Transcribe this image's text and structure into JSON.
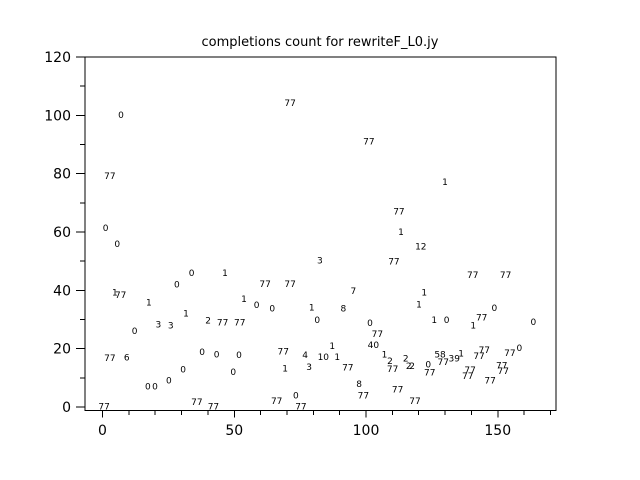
{
  "colors": {
    "background": "#ffffff",
    "foreground": "#000000"
  },
  "chart_data": {
    "type": "scatter",
    "title": "completions count for rewriteF_L0.jy",
    "xlabel": "",
    "ylabel": "",
    "xlim": [
      0,
      170
    ],
    "ylim": [
      0,
      120
    ],
    "x_major_ticks": [
      0,
      50,
      100,
      150
    ],
    "x_minor_tick_step": 10,
    "y_major_ticks": [
      0,
      20,
      40,
      60,
      80,
      100,
      120
    ],
    "y_minor_tick_step": 10,
    "grid": false,
    "legend": null,
    "marker": "numeric-text-label",
    "points_format": "[x, y, label]",
    "points": [
      [
        0.6,
        0.2,
        "77"
      ],
      [
        2.8,
        16.8,
        "77"
      ],
      [
        9.2,
        16.9,
        "6"
      ],
      [
        1.2,
        61.4,
        "0"
      ],
      [
        5.6,
        55.9,
        "0"
      ],
      [
        2.8,
        79.2,
        "77"
      ],
      [
        7.0,
        100.1,
        "0"
      ],
      [
        4.7,
        39.2,
        "1"
      ],
      [
        6.9,
        38.4,
        "77"
      ],
      [
        12.2,
        26.1,
        "0"
      ],
      [
        17.6,
        35.9,
        "1"
      ],
      [
        21.2,
        28.2,
        "3"
      ],
      [
        25.9,
        28.0,
        "3"
      ],
      [
        17.2,
        7.1,
        "0"
      ],
      [
        19.9,
        7.1,
        "0"
      ],
      [
        25.2,
        9.0,
        "0"
      ],
      [
        28.2,
        42.0,
        "0"
      ],
      [
        30.6,
        12.8,
        "0"
      ],
      [
        31.7,
        32.0,
        "1"
      ],
      [
        33.8,
        45.9,
        "0"
      ],
      [
        35.8,
        1.7,
        "77"
      ],
      [
        37.8,
        18.8,
        "0"
      ],
      [
        40.1,
        29.7,
        "2"
      ],
      [
        42.1,
        0.2,
        "77"
      ],
      [
        43.3,
        18.0,
        "0"
      ],
      [
        45.6,
        29.0,
        "77"
      ],
      [
        46.5,
        45.9,
        "1"
      ],
      [
        49.6,
        12.0,
        "0"
      ],
      [
        51.8,
        17.8,
        "0"
      ],
      [
        52.1,
        29.0,
        "77"
      ],
      [
        53.7,
        37.0,
        "1"
      ],
      [
        58.5,
        34.9,
        "0"
      ],
      [
        61.7,
        42.1,
        "77"
      ],
      [
        64.4,
        33.8,
        "0"
      ],
      [
        66.1,
        2.0,
        "77"
      ],
      [
        71.2,
        104.2,
        "77"
      ],
      [
        71.2,
        42.1,
        "77"
      ],
      [
        68.6,
        19.1,
        "77"
      ],
      [
        69.3,
        13.2,
        "1"
      ],
      [
        73.4,
        4.0,
        "0"
      ],
      [
        75.3,
        0.1,
        "77"
      ],
      [
        76.9,
        17.8,
        "4"
      ],
      [
        78.4,
        13.7,
        "3"
      ],
      [
        79.4,
        34.1,
        "1"
      ],
      [
        81.5,
        29.8,
        "0"
      ],
      [
        82.5,
        50.3,
        "3"
      ],
      [
        87.2,
        20.9,
        "1"
      ],
      [
        83.8,
        17.2,
        "10"
      ],
      [
        89.1,
        17.2,
        "1"
      ],
      [
        91.4,
        33.8,
        "8"
      ],
      [
        93.1,
        13.6,
        "77"
      ],
      [
        95.2,
        39.7,
        "7"
      ],
      [
        97.4,
        7.8,
        "8"
      ],
      [
        99.0,
        4.0,
        "77"
      ],
      [
        101.1,
        91.1,
        "77"
      ],
      [
        101.5,
        28.8,
        "0"
      ],
      [
        104.3,
        25.0,
        "77"
      ],
      [
        102.8,
        21.2,
        "40"
      ],
      [
        107.0,
        18.0,
        "1"
      ],
      [
        109.1,
        15.8,
        "2"
      ],
      [
        110.1,
        13.0,
        "77"
      ],
      [
        110.6,
        49.8,
        "77"
      ],
      [
        112.0,
        6.0,
        "77"
      ],
      [
        112.5,
        67.1,
        "77"
      ],
      [
        113.3,
        60.0,
        "1"
      ],
      [
        115.1,
        16.6,
        "2"
      ],
      [
        116.2,
        14.0,
        "2"
      ],
      [
        117.5,
        14.0,
        "2"
      ],
      [
        118.6,
        2.1,
        "77"
      ],
      [
        120.8,
        55.1,
        "12"
      ],
      [
        122.1,
        39.2,
        "1"
      ],
      [
        120.1,
        35.1,
        "1"
      ],
      [
        123.6,
        14.5,
        "0"
      ],
      [
        124.2,
        11.8,
        "77"
      ],
      [
        125.9,
        29.8,
        "1"
      ],
      [
        128.1,
        18.0,
        "58"
      ],
      [
        129.3,
        15.5,
        "77"
      ],
      [
        130.6,
        29.8,
        "0"
      ],
      [
        130.0,
        77.1,
        "1"
      ],
      [
        133.5,
        16.6,
        "39"
      ],
      [
        136.1,
        18.3,
        "1"
      ],
      [
        138.6,
        10.6,
        "77"
      ],
      [
        139.5,
        12.6,
        "77"
      ],
      [
        140.5,
        45.2,
        "77"
      ],
      [
        140.7,
        28.0,
        "1"
      ],
      [
        142.9,
        17.4,
        "77"
      ],
      [
        143.9,
        30.6,
        "77"
      ],
      [
        144.9,
        19.5,
        "77"
      ],
      [
        147.1,
        9.0,
        "77"
      ],
      [
        148.7,
        33.9,
        "0"
      ],
      [
        151.5,
        14.3,
        "77"
      ],
      [
        152.1,
        12.4,
        "77"
      ],
      [
        153.0,
        45.2,
        "77"
      ],
      [
        154.6,
        18.5,
        "77"
      ],
      [
        158.2,
        20.3,
        "0"
      ],
      [
        163.5,
        29.1,
        "0"
      ]
    ]
  }
}
